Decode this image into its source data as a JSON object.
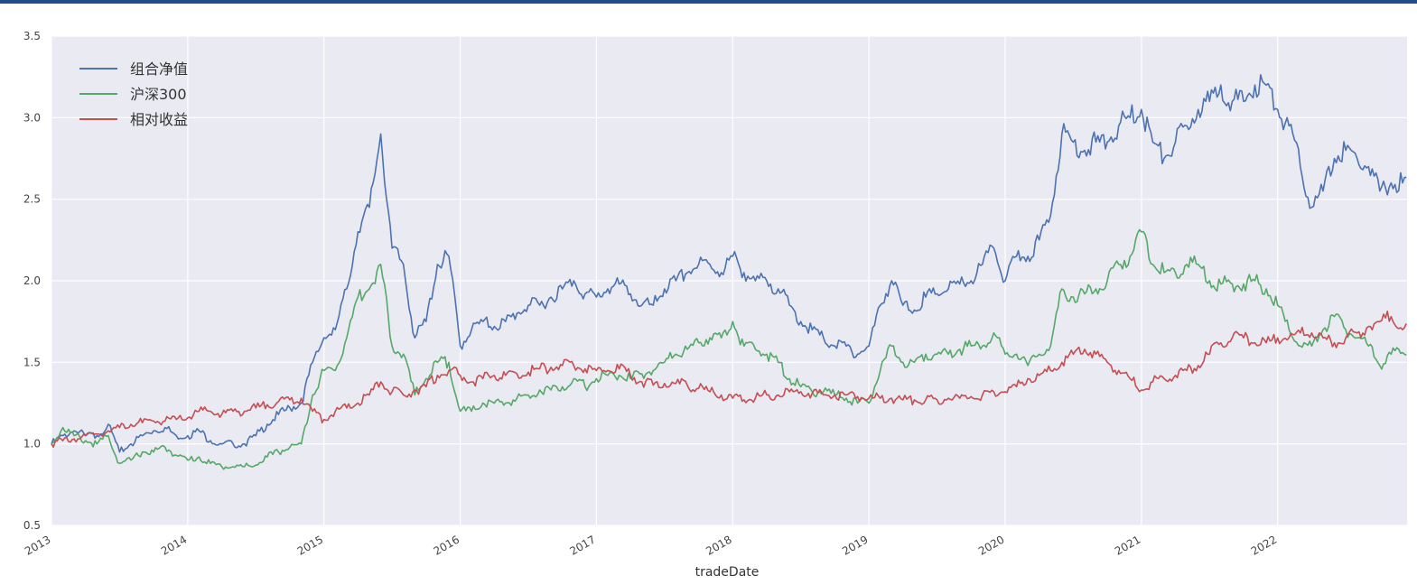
{
  "chart_data": {
    "type": "line",
    "title": "",
    "xlabel": "tradeDate",
    "ylabel": "",
    "x_start": "2013-01",
    "x_frequency": "monthly",
    "xlim": [
      2013,
      2022.95
    ],
    "ylim": [
      0.5,
      3.5
    ],
    "yticks": [
      "0.5",
      "1.0",
      "1.5",
      "2.0",
      "2.5",
      "3.0",
      "3.5"
    ],
    "xticks": [
      "2013",
      "2014",
      "2015",
      "2016",
      "2017",
      "2018",
      "2019",
      "2020",
      "2021",
      "2022"
    ],
    "grid": true,
    "legend_position": "top-left",
    "series": [
      {
        "name": "组合净值",
        "color": "#4c72b0",
        "values": [
          1.0,
          1.05,
          1.08,
          1.05,
          1.05,
          1.12,
          0.95,
          1.0,
          1.05,
          1.08,
          1.1,
          1.05,
          1.05,
          1.08,
          1.02,
          1.0,
          1.0,
          1.0,
          1.05,
          1.12,
          1.18,
          1.22,
          1.25,
          1.5,
          1.65,
          1.7,
          1.95,
          2.3,
          2.45,
          2.9,
          2.2,
          2.1,
          1.65,
          1.75,
          2.1,
          2.15,
          1.6,
          1.7,
          1.75,
          1.72,
          1.75,
          1.8,
          1.85,
          1.85,
          1.9,
          1.95,
          2.0,
          1.92,
          1.9,
          1.95,
          1.98,
          1.92,
          1.85,
          1.85,
          1.95,
          2.0,
          2.05,
          2.1,
          2.1,
          2.05,
          2.15,
          2.05,
          2.0,
          2.0,
          1.95,
          1.85,
          1.75,
          1.7,
          1.65,
          1.6,
          1.6,
          1.55,
          1.6,
          1.85,
          2.0,
          1.85,
          1.82,
          1.9,
          1.92,
          1.95,
          1.98,
          2.0,
          2.1,
          2.2,
          2.0,
          2.15,
          2.15,
          2.25,
          2.4,
          2.9,
          2.85,
          2.8,
          2.85,
          2.85,
          2.95,
          3.0,
          3.05,
          2.85,
          2.75,
          2.85,
          2.95,
          3.05,
          3.1,
          3.2,
          3.1,
          3.1,
          3.2,
          3.2,
          3.05,
          2.95,
          2.7,
          2.45,
          2.55,
          2.75,
          2.8,
          2.75,
          2.7,
          2.55,
          2.6,
          2.6
        ]
      },
      {
        "name": "沪深300",
        "color": "#55a868",
        "values": [
          1.0,
          1.1,
          1.05,
          1.02,
          1.0,
          1.05,
          0.88,
          0.9,
          0.95,
          0.95,
          0.98,
          0.93,
          0.9,
          0.92,
          0.88,
          0.86,
          0.86,
          0.86,
          0.87,
          0.92,
          0.95,
          0.98,
          1.0,
          1.3,
          1.45,
          1.45,
          1.65,
          1.9,
          1.95,
          2.1,
          1.6,
          1.55,
          1.3,
          1.4,
          1.5,
          1.5,
          1.2,
          1.2,
          1.25,
          1.25,
          1.25,
          1.28,
          1.3,
          1.33,
          1.33,
          1.35,
          1.4,
          1.35,
          1.4,
          1.42,
          1.42,
          1.4,
          1.43,
          1.45,
          1.5,
          1.55,
          1.58,
          1.62,
          1.65,
          1.65,
          1.75,
          1.6,
          1.58,
          1.55,
          1.5,
          1.4,
          1.35,
          1.32,
          1.32,
          1.3,
          1.28,
          1.25,
          1.25,
          1.45,
          1.6,
          1.5,
          1.5,
          1.55,
          1.55,
          1.55,
          1.58,
          1.6,
          1.6,
          1.68,
          1.55,
          1.55,
          1.48,
          1.55,
          1.6,
          1.95,
          1.9,
          1.92,
          1.95,
          2.0,
          2.1,
          2.15,
          2.3,
          2.1,
          2.05,
          2.05,
          2.1,
          2.1,
          2.0,
          1.98,
          1.98,
          1.98,
          2.0,
          1.95,
          1.85,
          1.7,
          1.6,
          1.6,
          1.7,
          1.78,
          1.7,
          1.65,
          1.6,
          1.48,
          1.55,
          1.56
        ]
      },
      {
        "name": "相对收益",
        "color": "#c44e52",
        "values": [
          1.0,
          1.02,
          1.03,
          1.05,
          1.06,
          1.08,
          1.1,
          1.12,
          1.13,
          1.14,
          1.14,
          1.15,
          1.16,
          1.2,
          1.2,
          1.18,
          1.2,
          1.2,
          1.22,
          1.24,
          1.26,
          1.27,
          1.28,
          1.2,
          1.15,
          1.2,
          1.22,
          1.25,
          1.3,
          1.38,
          1.32,
          1.3,
          1.33,
          1.35,
          1.42,
          1.45,
          1.42,
          1.38,
          1.4,
          1.42,
          1.42,
          1.43,
          1.44,
          1.46,
          1.47,
          1.48,
          1.48,
          1.46,
          1.45,
          1.45,
          1.46,
          1.42,
          1.38,
          1.36,
          1.37,
          1.37,
          1.36,
          1.34,
          1.32,
          1.3,
          1.28,
          1.27,
          1.28,
          1.3,
          1.3,
          1.32,
          1.32,
          1.31,
          1.3,
          1.3,
          1.3,
          1.29,
          1.28,
          1.28,
          1.28,
          1.27,
          1.27,
          1.27,
          1.27,
          1.28,
          1.28,
          1.29,
          1.3,
          1.32,
          1.32,
          1.35,
          1.4,
          1.42,
          1.45,
          1.5,
          1.55,
          1.58,
          1.55,
          1.5,
          1.45,
          1.4,
          1.33,
          1.38,
          1.4,
          1.42,
          1.45,
          1.48,
          1.55,
          1.62,
          1.65,
          1.65,
          1.62,
          1.62,
          1.65,
          1.65,
          1.68,
          1.68,
          1.65,
          1.62,
          1.65,
          1.68,
          1.72,
          1.75,
          1.78,
          1.7
        ]
      }
    ]
  }
}
